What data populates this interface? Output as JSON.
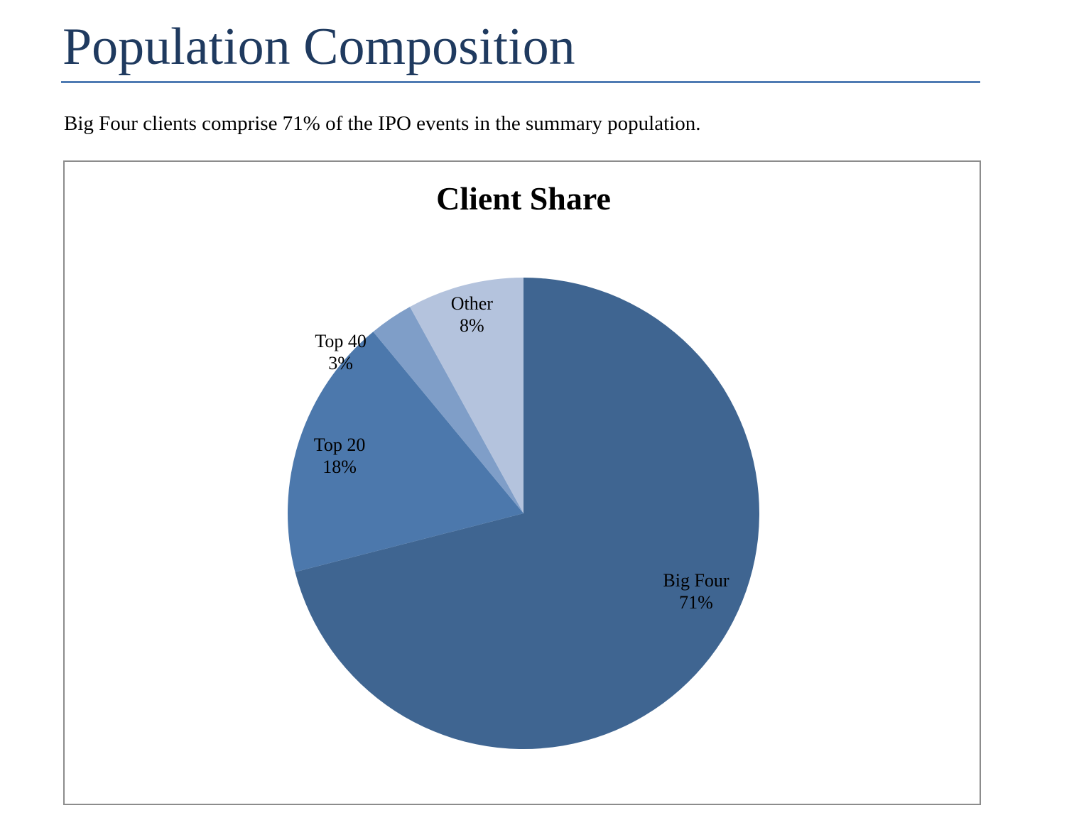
{
  "page": {
    "title": "Population Composition",
    "summary": "Big Four clients comprise 71% of the IPO events in the summary population."
  },
  "chart_data": {
    "type": "pie",
    "title": "Client Share",
    "start_angle_deg": 0,
    "direction": "clockwise",
    "slices": [
      {
        "name": "Big Four",
        "value": 71,
        "label": "71%",
        "color": "#3f6591"
      },
      {
        "name": "Top 20",
        "value": 18,
        "label": "18%",
        "color": "#4c78ac"
      },
      {
        "name": "Top 40",
        "value": 3,
        "label": "3%",
        "color": "#7f9ec8"
      },
      {
        "name": "Other",
        "value": 8,
        "label": "8%",
        "color": "#b4c3dd"
      }
    ]
  }
}
